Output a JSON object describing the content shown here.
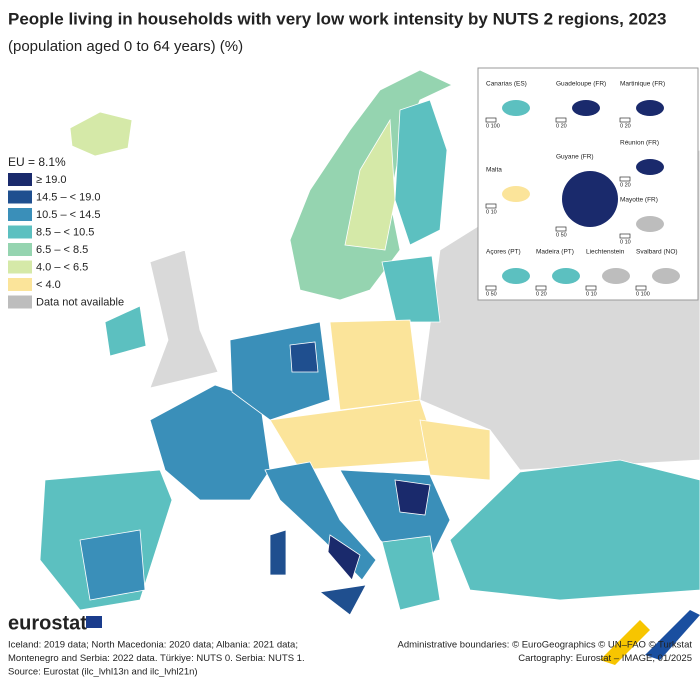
{
  "header": {
    "title": "People living in households with very low work intensity by NUTS 2 regions, 2023",
    "subtitle": "(population aged 0 to 64 years) (%)"
  },
  "legend": {
    "title": "EU = 8.1%",
    "items": [
      {
        "label": "≥ 19.0",
        "color": "#1a2a6c"
      },
      {
        "label": "14.5 – < 19.0",
        "color": "#1f4f8f"
      },
      {
        "label": "10.5 – < 14.5",
        "color": "#3a8fb9"
      },
      {
        "label": "8.5 – < 10.5",
        "color": "#5cc0c0"
      },
      {
        "label": "6.5 – < 8.5",
        "color": "#95d4b0"
      },
      {
        "label": "4.0 – < 6.5",
        "color": "#d5e9a8"
      },
      {
        "label": "< 4.0",
        "color": "#fbe49a"
      },
      {
        "label": "Data not available",
        "color": "#bdbdbd"
      }
    ]
  },
  "insets": [
    {
      "label": "Canarias (ES)",
      "scale": "0 100"
    },
    {
      "label": "Guadeloupe (FR)",
      "scale": "0 20"
    },
    {
      "label": "Martinique (FR)",
      "scale": "0 20"
    },
    {
      "label": "Réunion (FR)",
      "scale": "0 20"
    },
    {
      "label": "Malta",
      "scale": "0 10"
    },
    {
      "label": "Guyane (FR)",
      "scale": "0 50"
    },
    {
      "label": "Mayotte (FR)",
      "scale": "0 10"
    },
    {
      "label": "Açores (PT)",
      "scale": "0 50"
    },
    {
      "label": "Madeira (PT)",
      "scale": "0 20"
    },
    {
      "label": "Liechtenstein",
      "scale": "0 10"
    },
    {
      "label": "Svalbard (NO)",
      "scale": "0 100"
    }
  ],
  "footer": {
    "logo": "eurostat",
    "notes": [
      "Iceland: 2019 data; North Macedonia: 2020 data; Albania: 2021 data;",
      "Montenegro and Serbia: 2022 data. Türkiye: NUTS 0. Serbia: NUTS 1.",
      "Source: Eurostat (ilc_lvhl13n and ilc_lvhl21n)"
    ],
    "credits": [
      "Administrative boundaries: © EuroGeographics © UN–FAO © Turkstat",
      "Cartography: Eurostat – IMAGE, 01/2025"
    ]
  }
}
